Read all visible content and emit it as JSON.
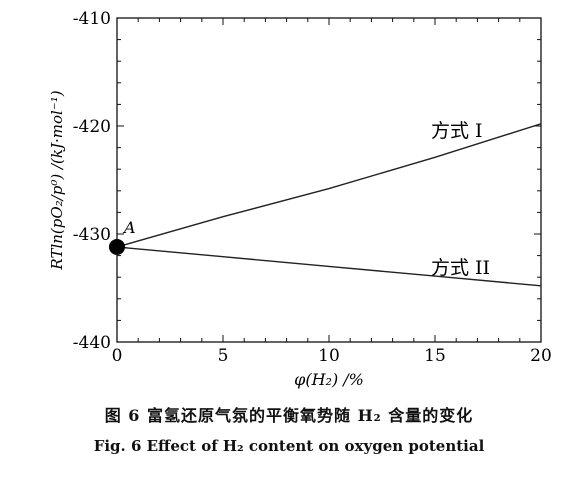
{
  "chart_data": {
    "type": "line",
    "x": [
      0,
      5,
      10,
      15,
      20
    ],
    "series": [
      {
        "name": "方式 I",
        "values": [
          -431.2,
          -428.4,
          -425.8,
          -422.9,
          -419.8
        ]
      },
      {
        "name": "方式 II",
        "values": [
          -431.2,
          -432.1,
          -433.0,
          -433.9,
          -434.8
        ]
      }
    ],
    "xlabel": "φ(H₂) /%",
    "ylabel": "RTln(pO₂/p⁰) /(kJ·mol⁻¹)",
    "xlim": [
      0,
      20
    ],
    "ylim": [
      -440,
      -410
    ],
    "xticks": [
      "0",
      "5",
      "10",
      "15",
      "20"
    ],
    "yticks": [
      "-410",
      "-420",
      "-430",
      "-440"
    ],
    "grid": false,
    "point_label": "A",
    "line_color": "#222222"
  },
  "caption": {
    "cn": "图 6   富氢还原气氛的平衡氧势随 H₂ 含量的变化",
    "en": "Fig. 6    Effect of H₂ content on oxygen potential"
  }
}
